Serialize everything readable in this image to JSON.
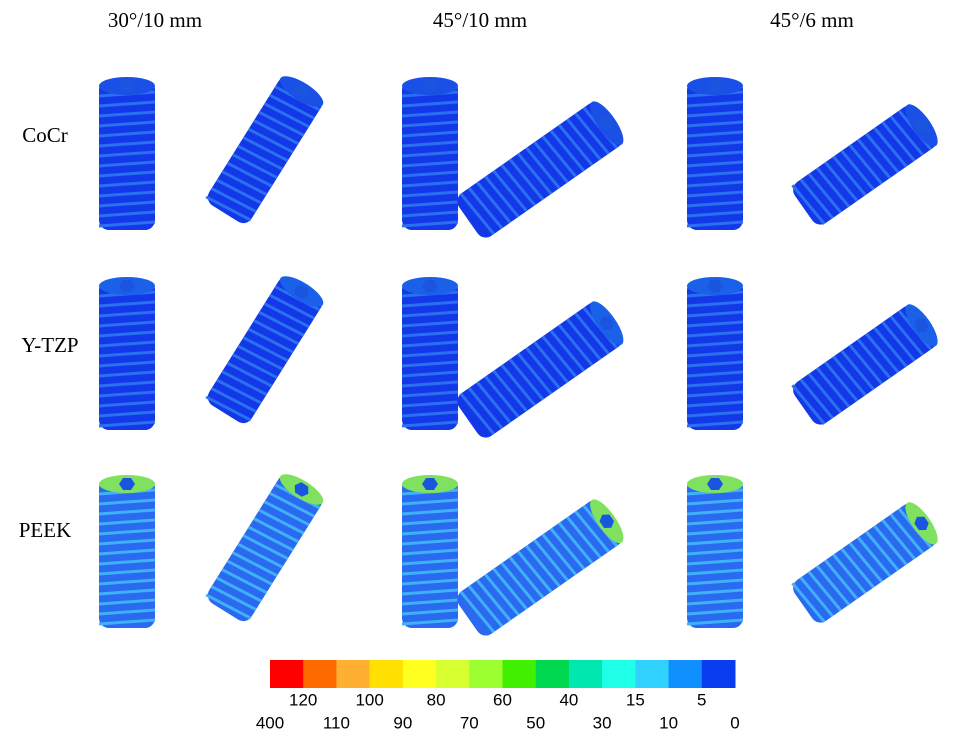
{
  "columns": [
    "30°/10 mm",
    "45°/10 mm",
    "45°/6 mm"
  ],
  "rows": [
    "CoCr",
    "Y-TZP",
    "PEEK"
  ],
  "colorbar": {
    "colors": [
      "#ff0000",
      "#ff6a00",
      "#ffb030",
      "#ffe000",
      "#ffff20",
      "#d8ff30",
      "#9cff30",
      "#40f000",
      "#00d850",
      "#00e8b0",
      "#20ffe8",
      "#30d0ff",
      "#1090ff",
      "#0a3cf0"
    ],
    "boundaries": [
      400,
      120,
      110,
      100,
      90,
      80,
      70,
      60,
      50,
      40,
      30,
      15,
      10,
      5,
      0
    ]
  }
}
